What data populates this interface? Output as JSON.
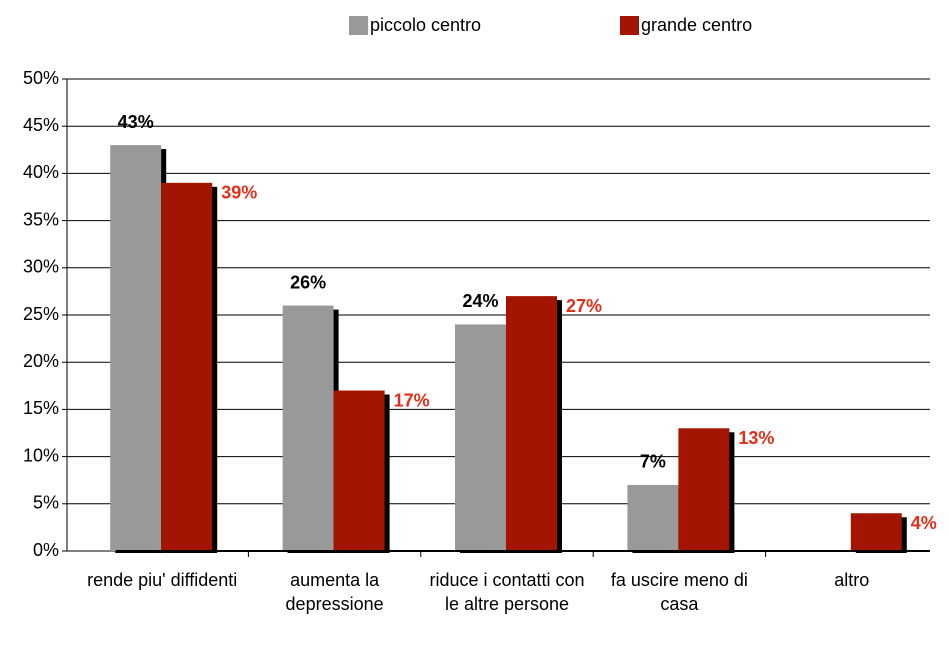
{
  "chart_data": {
    "type": "bar",
    "categories": [
      "rende piu' diffidenti",
      "aumenta la depressione",
      "riduce i contatti con le altre persone",
      "fa uscire meno di casa",
      "altro"
    ],
    "series": [
      {
        "name": "piccolo centro",
        "color": "#999999",
        "label_color": "#000000",
        "values": [
          43,
          26,
          24,
          7,
          null
        ],
        "value_labels": [
          "43%",
          "26%",
          "24%",
          "7%",
          null
        ]
      },
      {
        "name": "grande centro",
        "color": "#a31500",
        "label_color": "#e0301a",
        "values": [
          39,
          17,
          27,
          13,
          4
        ],
        "value_labels": [
          "39%",
          "17%",
          "27%",
          "13%",
          "4%"
        ]
      }
    ],
    "ylim": [
      0,
      50
    ],
    "yticks": [
      {
        "value": 0,
        "label": "0%"
      },
      {
        "value": 5,
        "label": "5%"
      },
      {
        "value": 10,
        "label": "10%"
      },
      {
        "value": 15,
        "label": "15%"
      },
      {
        "value": 20,
        "label": "20%"
      },
      {
        "value": 25,
        "label": "25%"
      },
      {
        "value": 30,
        "label": "30%"
      },
      {
        "value": 35,
        "label": "35%"
      },
      {
        "value": 40,
        "label": "40%"
      },
      {
        "value": 45,
        "label": "45%"
      },
      {
        "value": 50,
        "label": "50%"
      }
    ],
    "grid": true,
    "legend": "top"
  }
}
